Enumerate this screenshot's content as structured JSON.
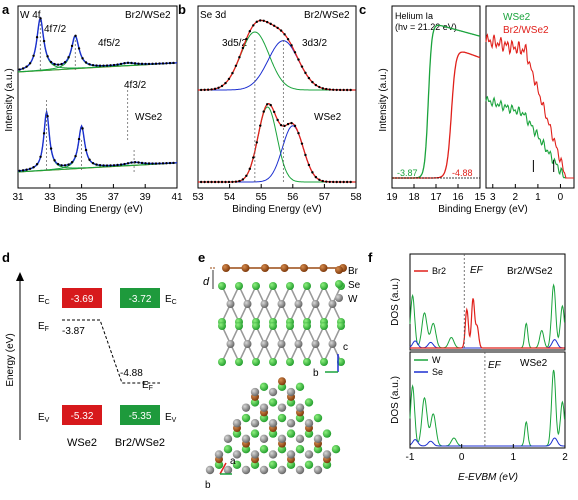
{
  "panel_letters": {
    "a": "a",
    "b": "b",
    "c": "c",
    "d": "d",
    "e": "e",
    "f": "f"
  },
  "colors": {
    "green": "#1aa33c",
    "blue": "#1c2fd0",
    "red": "#e0201b",
    "orange": "#e87a1a",
    "black": "#000000",
    "box_red": "#d7191c",
    "box_green": "#1e9a3c",
    "brown": "#9a4a12",
    "se_green": "#3bc13b",
    "w_gray": "#8c8c8c"
  },
  "panel_a": {
    "title_element": "W 4f",
    "label_top": "Br2/WSe2",
    "label_bottom": "WSe2",
    "peaks": [
      "4f7/2",
      "4f5/2",
      "4f3/2"
    ],
    "xlabel": "Binding Energy (eV)",
    "ylabel": "Intensity (a.u.)",
    "xticks": [
      "31",
      "33",
      "35",
      "37",
      "39",
      "41"
    ]
  },
  "panel_b": {
    "title_element": "Se 3d",
    "label_top": "Br2/WSe2",
    "label_bottom": "WSe2",
    "peaks": [
      "3d5/2",
      "3d3/2"
    ],
    "xlabel": "Binding Energy (eV)",
    "xticks": [
      "53",
      "54",
      "55",
      "56",
      "57",
      "58"
    ]
  },
  "panel_c": {
    "source": "Helium Ia",
    "photon": "(hν = 21.22 eV)",
    "legend": [
      "WSe2",
      "Br2/WSe2"
    ],
    "cutoff_values": [
      "-3.87",
      "-4.88"
    ],
    "xlabel": "Binding Energy (eV)",
    "ylabel": "Intensity (a.u.)",
    "xticks_left": [
      "19",
      "18",
      "17",
      "16",
      "15"
    ],
    "xticks_right": [
      "3",
      "2",
      "1",
      "0"
    ]
  },
  "panel_d": {
    "ylabel": "Energy (eV)",
    "EC_left": "-3.69",
    "EC_right": "-3.72",
    "EF_left": "-3.87",
    "EF_right": "-4.88",
    "EV_left": "-5.32",
    "EV_right": "-5.35",
    "labels": {
      "EC": "E",
      "EF": "E",
      "EV": "E",
      "sub_C": "C",
      "sub_F": "F",
      "sub_V": "V"
    },
    "xlabels": [
      "WSe2",
      "Br2/WSe2"
    ]
  },
  "panel_e": {
    "legend": [
      "Br",
      "Se",
      "W"
    ],
    "axes": {
      "c": "c",
      "b": "b",
      "a": "a"
    },
    "d_label": "d"
  },
  "panel_f": {
    "top_legend": "Br2",
    "top_title": "Br2/WSe2",
    "bottom_legend": [
      "W",
      "Se"
    ],
    "bottom_title": "WSe2",
    "ef_label": "EF",
    "ylabel": "DOS (a.u.)",
    "xlabel": "E-EVBM (eV)",
    "xticks": [
      "-1",
      "0",
      "1",
      "2"
    ]
  },
  "chart_data": [
    {
      "panel": "a",
      "type": "line",
      "title": "W 4f",
      "xlabel": "Binding Energy (eV)",
      "ylabel": "Intensity (a.u.)",
      "xlim": [
        31,
        41
      ],
      "series": [
        {
          "name": "Br2/WSe2",
          "peaks": [
            {
              "x": 32.4,
              "label": "4f7/2"
            },
            {
              "x": 34.6,
              "label": "4f5/2"
            },
            {
              "x": 37.9,
              "label": "4f3/2"
            }
          ]
        },
        {
          "name": "WSe2",
          "peaks": [
            {
              "x": 32.8,
              "label": "4f7/2"
            },
            {
              "x": 35.0,
              "label": "4f5/2"
            },
            {
              "x": 38.3,
              "label": "4f3/2"
            }
          ]
        }
      ]
    },
    {
      "panel": "b",
      "type": "line",
      "title": "Se 3d",
      "xlabel": "Binding Energy (eV)",
      "xlim": [
        53,
        58
      ],
      "series": [
        {
          "name": "Br2/WSe2",
          "peaks": [
            {
              "x": 54.8,
              "label": "3d5/2"
            },
            {
              "x": 55.7,
              "label": "3d3/2"
            }
          ]
        },
        {
          "name": "WSe2",
          "peaks": [
            {
              "x": 55.2,
              "label": "3d5/2"
            },
            {
              "x": 56.0,
              "label": "3d3/2"
            }
          ]
        }
      ]
    },
    {
      "panel": "c",
      "type": "line",
      "xlabel": "Binding Energy (eV)",
      "ylabel": "Intensity (a.u.)",
      "series": [
        {
          "name": "WSe2",
          "cutoff": "-3.87"
        },
        {
          "name": "Br2/WSe2",
          "cutoff": "-4.88"
        }
      ]
    },
    {
      "panel": "f",
      "type": "line",
      "xlabel": "E-EVBM (eV)",
      "ylabel": "DOS (a.u.)",
      "xlim": [
        -1,
        2
      ],
      "series": [
        {
          "name": "Br2"
        },
        {
          "name": "W"
        },
        {
          "name": "Se"
        }
      ]
    }
  ]
}
